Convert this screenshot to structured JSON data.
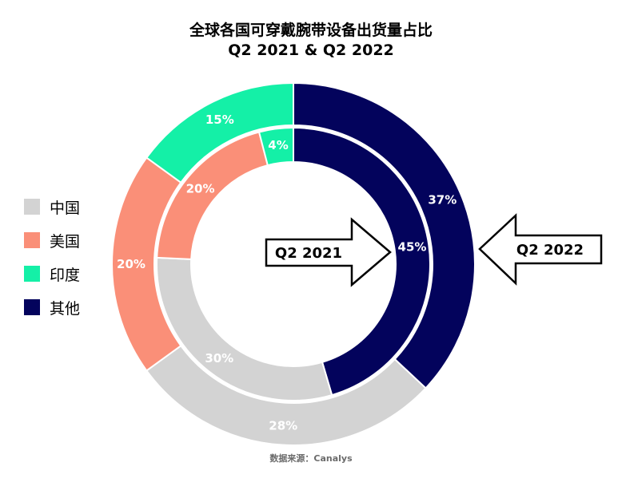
{
  "title": {
    "line1": "全球各国可穿戴腕带设备出货量占比",
    "line2": "Q2 2021 & Q2 2022"
  },
  "source": "数据来源：Canalys",
  "colors": {
    "china": "#d3d3d3",
    "usa": "#fa8f78",
    "india": "#14f0a7",
    "other": "#03035c"
  },
  "chart_data": {
    "type": "donut",
    "categories": [
      "中国",
      "美国",
      "印度",
      "其他"
    ],
    "series": [
      {
        "name": "Q2 2021",
        "ring": "inner",
        "values": [
          30,
          20,
          4,
          45
        ],
        "labels": [
          "30%",
          "20%",
          "4%",
          "45%"
        ]
      },
      {
        "name": "Q2 2022",
        "ring": "outer",
        "values": [
          28,
          20,
          15,
          37
        ],
        "labels": [
          "28%",
          "20%",
          "15%",
          "37%"
        ]
      }
    ],
    "legend": {
      "placement": "left",
      "entries": [
        "中国",
        "美国",
        "印度",
        "其他"
      ]
    },
    "annotations": [
      "Q2 2021",
      "Q2 2022"
    ]
  }
}
